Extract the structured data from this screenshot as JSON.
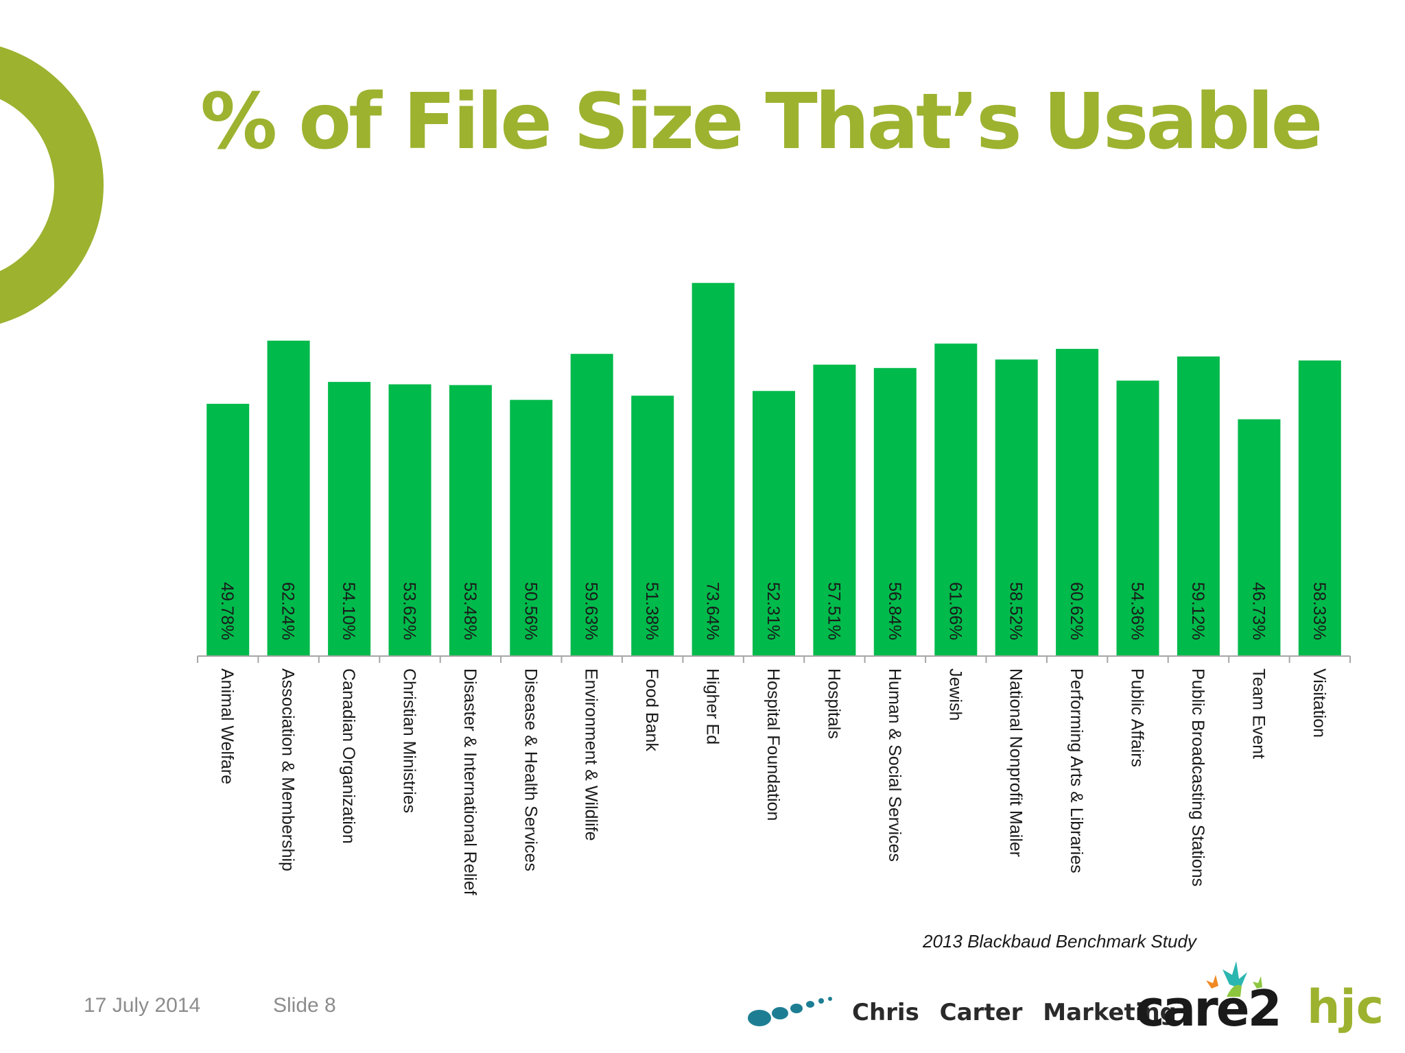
{
  "slide": {
    "title": "% of File Size That’s Usable",
    "source_note": "2013 Blackbaud Benchmark Study",
    "date": "17 July 2014",
    "slide_number": "Slide 8",
    "accent_color": "#9db22f",
    "bar_color": "#00ba4b"
  },
  "logos": {
    "ccm": "Chris Carter Marketing",
    "care2": "care2",
    "hjc": "hjc"
  },
  "chart_data": {
    "type": "bar",
    "title": "",
    "xlabel": "",
    "ylabel": "",
    "ylim": [
      0,
      80
    ],
    "grid": false,
    "legend": "none",
    "categories": [
      "Animal Welfare",
      "Association & Membership",
      "Canadian Organization",
      "Christian Ministries",
      "Disaster & International Relief",
      "Disease & Health Services",
      "Environment & Wildlife",
      "Food Bank",
      "Higher Ed",
      "Hospital Foundation",
      "Hospitals",
      "Human & Social Services",
      "Jewish",
      "National Nonprofit Mailer",
      "Performing Arts & Libraries",
      "Public Affairs",
      "Public Broadcasting Stations",
      "Team Event",
      "Visitation"
    ],
    "values": [
      49.78,
      62.24,
      54.1,
      53.62,
      53.48,
      50.56,
      59.63,
      51.38,
      73.64,
      52.31,
      57.51,
      56.84,
      61.66,
      58.52,
      60.62,
      54.36,
      59.12,
      46.73,
      58.33
    ],
    "data_labels": [
      "49.78%",
      "62.24%",
      "54.10%",
      "53.62%",
      "53.48%",
      "50.56%",
      "59.63%",
      "51.38%",
      "73.64%",
      "52.31%",
      "57.51%",
      "56.84%",
      "61.66%",
      "58.52%",
      "60.62%",
      "54.36%",
      "59.12%",
      "46.73%",
      "58.33%"
    ]
  }
}
